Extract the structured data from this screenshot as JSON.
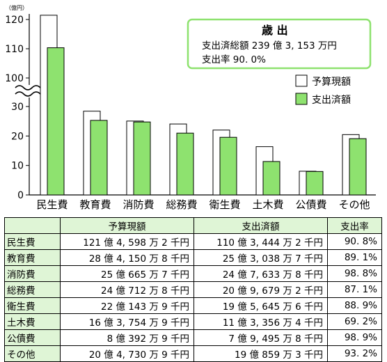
{
  "chart_data": {
    "type": "bar",
    "unit": "（億円）",
    "categories": [
      "民生費",
      "教育費",
      "消防費",
      "総務費",
      "衛生費",
      "土木費",
      "公債費",
      "その他"
    ],
    "series": [
      {
        "name": "予算現額",
        "color": "#ffffff",
        "values": [
          121.46,
          28.42,
          25.07,
          24.07,
          22.01,
          16.38,
          8.04,
          20.47
        ]
      },
      {
        "name": "支出済額",
        "color": "#8ee26f",
        "values": [
          110.34,
          25.3,
          24.76,
          20.97,
          19.56,
          11.34,
          7.95,
          19.09
        ]
      }
    ],
    "yticks_lower": [
      0,
      10,
      20,
      30
    ],
    "yticks_upper": [
      100,
      110,
      120
    ],
    "axis_break": [
      30,
      100
    ],
    "legend_position": "right"
  },
  "summary_box": {
    "title": "歳 出",
    "line1": "支出済総額 239 億 3, 153 万円",
    "line2": "支出率 90. 0%",
    "border_color": "#8ee26f"
  },
  "table": {
    "headers": [
      "",
      "予算現額",
      "支出済額",
      "支出率"
    ],
    "rows": [
      {
        "name": "民生費",
        "budget": "121 億 4, 598 万 2 千円",
        "spent": "110 億 3, 444 万 2 千円",
        "rate": "90. 8%"
      },
      {
        "name": "教育費",
        "budget": "28 億 4, 150 万 8 千円",
        "spent": "25 億 3, 038 万 7 千円",
        "rate": "89. 1%"
      },
      {
        "name": "消防費",
        "budget": "25 億 665 万 7 千円",
        "spent": "24 億 7, 633 万 8 千円",
        "rate": "98. 8%"
      },
      {
        "name": "総務費",
        "budget": "24 億 712 万 8 千円",
        "spent": "20 億 9, 679 万 2 千円",
        "rate": "87. 1%"
      },
      {
        "name": "衛生費",
        "budget": "22 億 143 万 9 千円",
        "spent": "19 億 5, 645 万 6 千円",
        "rate": "88. 9%"
      },
      {
        "name": "土木費",
        "budget": "16 億 3, 754 万 9 千円",
        "spent": "11 億 3, 356 万 4 千円",
        "rate": "69. 2%"
      },
      {
        "name": "公債費",
        "budget": "8 億 392 万 9 千円",
        "spent": "7 億 9, 495 万 8 千円",
        "rate": "98. 9%"
      },
      {
        "name": "その他",
        "budget": "20 億 4, 730 万 9 千円",
        "spent": "19 億 859 万 3 千円",
        "rate": "93. 2%"
      }
    ]
  }
}
